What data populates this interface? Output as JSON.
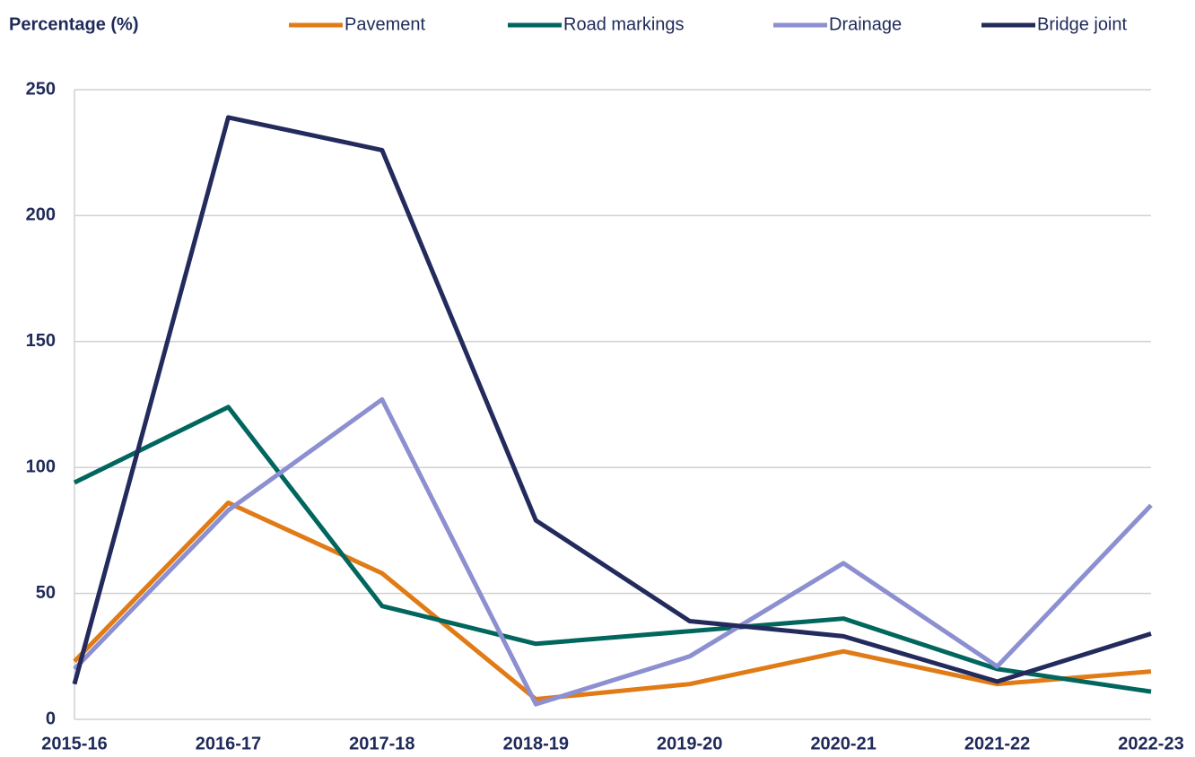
{
  "chart_data": {
    "type": "line",
    "y_axis_label": "Percentage (%)",
    "categories": [
      "2015-16",
      "2016-17",
      "2017-18",
      "2018-19",
      "2019-20",
      "2020-21",
      "2021-22",
      "2022-23"
    ],
    "series": [
      {
        "name": "Pavement",
        "color": "#e07b16",
        "values": [
          23,
          86,
          58,
          8,
          14,
          27,
          14,
          19
        ]
      },
      {
        "name": "Road markings",
        "color": "#00665e",
        "values": [
          94,
          124,
          45,
          30,
          35,
          40,
          20,
          11
        ]
      },
      {
        "name": "Drainage",
        "color": "#8c8fd0",
        "values": [
          20,
          83,
          127,
          6,
          25,
          62,
          21,
          85
        ]
      },
      {
        "name": "Bridge joint",
        "color": "#232a5c",
        "values": [
          14,
          239,
          226,
          79,
          39,
          33,
          15,
          34
        ]
      }
    ],
    "ylim": [
      0,
      250
    ],
    "yticks": [
      0,
      50,
      100,
      150,
      200,
      250
    ],
    "grid": true,
    "legend": "top"
  }
}
